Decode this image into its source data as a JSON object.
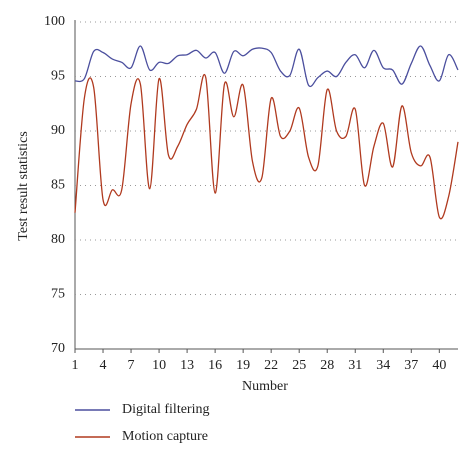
{
  "chart_data": {
    "type": "line",
    "y_label": "Test result statistics",
    "x_label": "Number",
    "x": [
      1,
      2,
      3,
      4,
      5,
      6,
      7,
      8,
      9,
      10,
      11,
      12,
      13,
      14,
      15,
      16,
      17,
      18,
      19,
      20,
      21,
      22,
      23,
      24,
      25,
      26,
      27,
      28,
      29,
      30,
      31,
      32,
      33,
      34,
      35,
      36,
      37,
      38,
      39,
      40,
      41,
      42
    ],
    "series": [
      {
        "name": "Digital filtering",
        "color": "#4b4f9e",
        "values": [
          94.6,
          94.8,
          97.3,
          97.2,
          96.6,
          96.3,
          95.8,
          97.8,
          95.6,
          96.3,
          96.2,
          96.9,
          97.0,
          97.4,
          96.7,
          97.2,
          95.3,
          97.3,
          96.9,
          97.5,
          97.6,
          97.2,
          95.5,
          95.1,
          97.5,
          94.2,
          94.9,
          95.5,
          95.0,
          96.3,
          97.0,
          95.8,
          97.4,
          95.8,
          95.6,
          94.3,
          96.2,
          97.8,
          96.0,
          94.6,
          97.0,
          95.6
        ]
      },
      {
        "name": "Motion capture",
        "color": "#b03a1f",
        "values": [
          82.5,
          93.0,
          94.0,
          83.7,
          84.6,
          84.6,
          92.5,
          94.3,
          84.7,
          94.8,
          87.8,
          88.6,
          90.6,
          92.0,
          94.9,
          84.3,
          94.3,
          91.3,
          94.2,
          87.2,
          85.7,
          93.0,
          89.5,
          90.0,
          92.1,
          87.6,
          86.8,
          93.8,
          90.0,
          89.5,
          92.0,
          85.0,
          88.6,
          90.7,
          86.7,
          92.3,
          88.0,
          86.8,
          87.6,
          82.1,
          84.0,
          89.0
        ]
      }
    ],
    "xlim": [
      1,
      42
    ],
    "xticks": [
      1,
      4,
      7,
      10,
      13,
      16,
      19,
      22,
      25,
      28,
      31,
      34,
      37,
      40
    ],
    "ylim": [
      70,
      100
    ],
    "yticks": [
      70,
      75,
      80,
      85,
      90,
      95,
      100
    ],
    "grid": true,
    "legend": "bottom"
  }
}
